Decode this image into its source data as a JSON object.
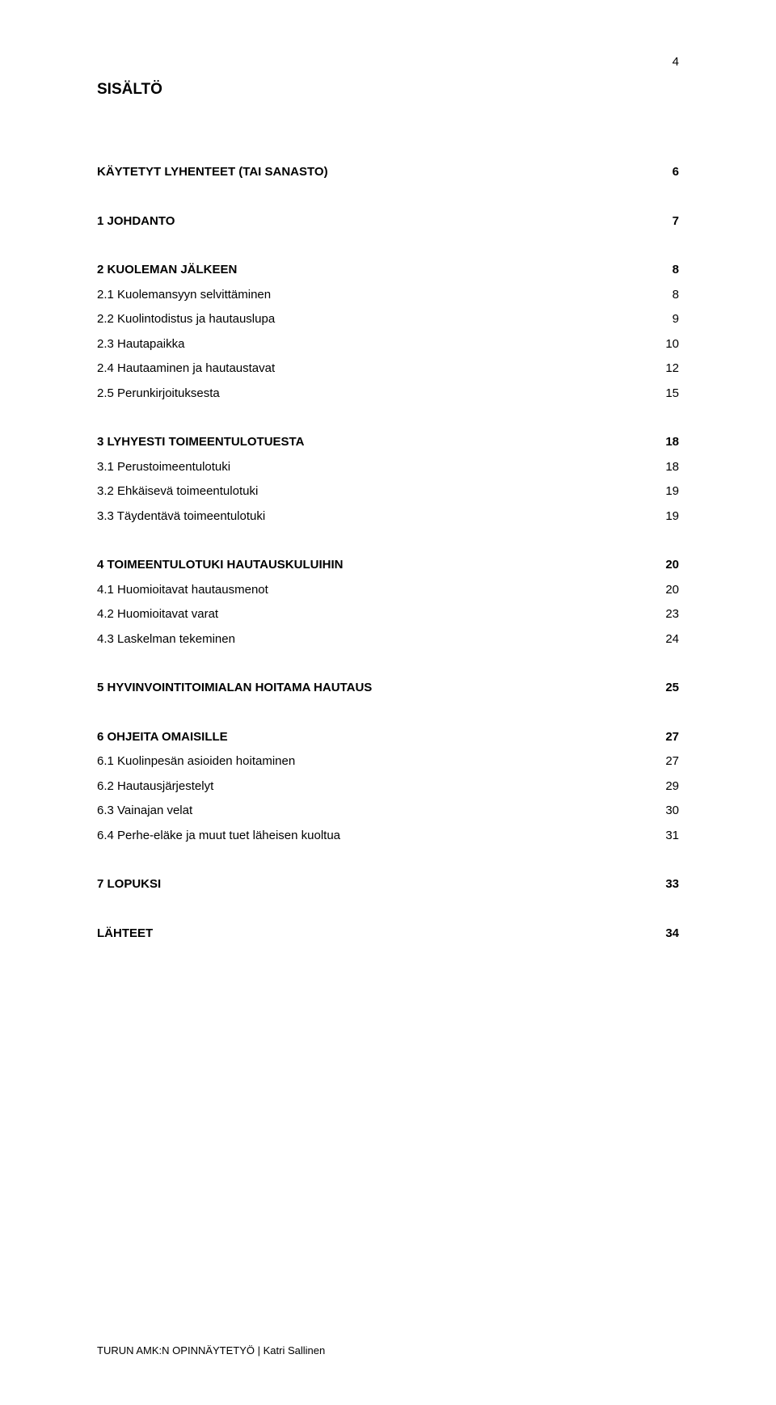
{
  "page_number": "4",
  "title": "SISÄLTÖ",
  "toc": [
    {
      "label": "KÄYTETYT LYHENTEET (TAI SANASTO)",
      "page": "6",
      "bold": true,
      "gap_before": "none"
    },
    {
      "label": "1 JOHDANTO",
      "page": "7",
      "bold": true,
      "gap_before": "large"
    },
    {
      "label": "2 KUOLEMAN JÄLKEEN",
      "page": "8",
      "bold": true,
      "gap_before": "large"
    },
    {
      "label": "2.1 Kuolemansyyn selvittäminen",
      "page": "8",
      "bold": false,
      "gap_before": "small"
    },
    {
      "label": "2.2 Kuolintodistus ja hautauslupa",
      "page": "9",
      "bold": false,
      "gap_before": "small"
    },
    {
      "label": "2.3 Hautapaikka",
      "page": "10",
      "bold": false,
      "gap_before": "small"
    },
    {
      "label": "2.4 Hautaaminen ja hautaustavat",
      "page": "12",
      "bold": false,
      "gap_before": "small"
    },
    {
      "label": "2.5 Perunkirjoituksesta",
      "page": "15",
      "bold": false,
      "gap_before": "small"
    },
    {
      "label": "3 LYHYESTI TOIMEENTULOTUESTA",
      "page": "18",
      "bold": true,
      "gap_before": "large"
    },
    {
      "label": "3.1 Perustoimeentulotuki",
      "page": "18",
      "bold": false,
      "gap_before": "small"
    },
    {
      "label": "3.2 Ehkäisevä toimeentulotuki",
      "page": "19",
      "bold": false,
      "gap_before": "small"
    },
    {
      "label": "3.3 Täydentävä toimeentulotuki",
      "page": "19",
      "bold": false,
      "gap_before": "small"
    },
    {
      "label": "4 TOIMEENTULOTUKI HAUTAUSKULUIHIN",
      "page": "20",
      "bold": true,
      "gap_before": "large"
    },
    {
      "label": "4.1 Huomioitavat hautausmenot",
      "page": "20",
      "bold": false,
      "gap_before": "small"
    },
    {
      "label": "4.2 Huomioitavat varat",
      "page": "23",
      "bold": false,
      "gap_before": "small"
    },
    {
      "label": "4.3 Laskelman tekeminen",
      "page": "24",
      "bold": false,
      "gap_before": "small"
    },
    {
      "label": "5 HYVINVOINTITOIMIALAN HOITAMA HAUTAUS",
      "page": "25",
      "bold": true,
      "gap_before": "large"
    },
    {
      "label": "6 OHJEITA OMAISILLE",
      "page": "27",
      "bold": true,
      "gap_before": "large"
    },
    {
      "label": "6.1 Kuolinpesän asioiden hoitaminen",
      "page": "27",
      "bold": false,
      "gap_before": "small"
    },
    {
      "label": "6.2 Hautausjärjestelyt",
      "page": "29",
      "bold": false,
      "gap_before": "small"
    },
    {
      "label": "6.3 Vainajan velat",
      "page": "30",
      "bold": false,
      "gap_before": "small"
    },
    {
      "label": "6.4 Perhe-eläke ja muut tuet läheisen kuoltua",
      "page": "31",
      "bold": false,
      "gap_before": "small"
    },
    {
      "label": "7 LOPUKSI",
      "page": "33",
      "bold": true,
      "gap_before": "large"
    },
    {
      "label": "LÄHTEET",
      "page": "34",
      "bold": true,
      "gap_before": "large"
    }
  ],
  "footer": "TURUN AMK:N OPINNÄYTETYÖ | Katri Sallinen",
  "colors": {
    "background": "#ffffff",
    "text": "#000000"
  },
  "typography": {
    "body_fontsize": 15,
    "title_fontsize": 19,
    "footer_fontsize": 13,
    "font_family": "Arial"
  }
}
